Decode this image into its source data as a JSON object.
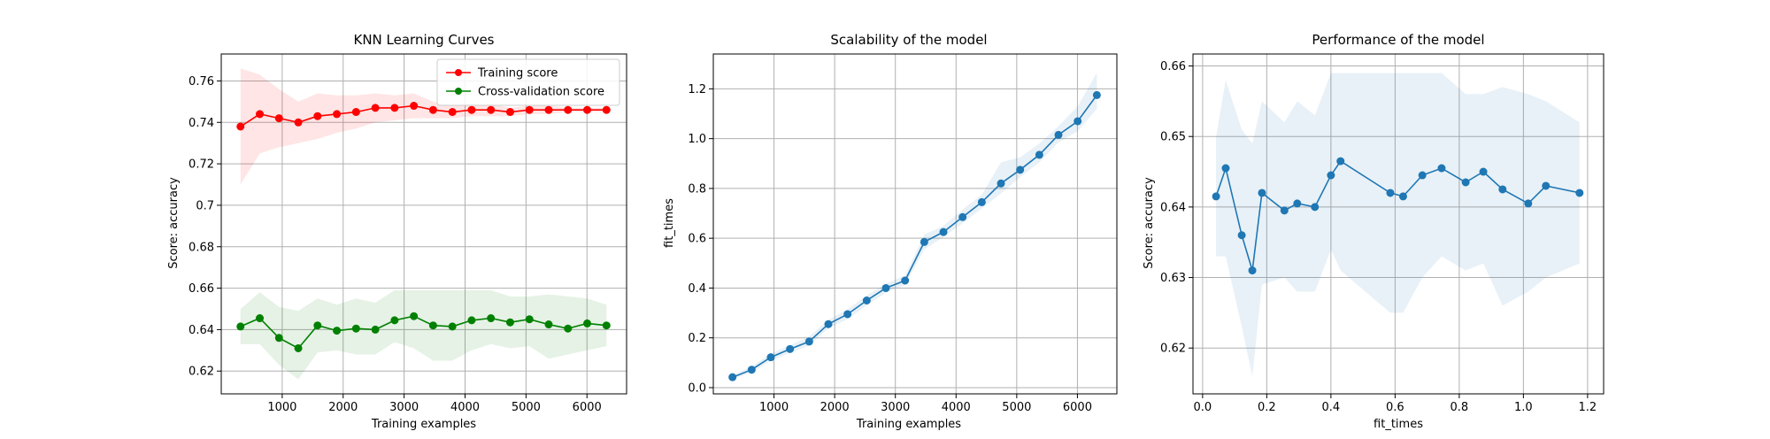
{
  "chart_data": [
    {
      "type": "line",
      "title": "KNN Learning Curves",
      "xlabel": "Training examples",
      "ylabel": "Score: accuracy",
      "xlim": [
        0,
        6650
      ],
      "ylim": [
        0.609,
        0.773
      ],
      "xticks": [
        1000,
        2000,
        3000,
        4000,
        5000,
        6000
      ],
      "yticks": [
        0.62,
        0.64,
        0.66,
        0.68,
        0.7,
        0.72,
        0.74,
        0.76
      ],
      "grid": true,
      "legend": "top-right",
      "x": [
        316,
        632,
        948,
        1264,
        1580,
        1896,
        2212,
        2528,
        2844,
        3160,
        3476,
        3792,
        4108,
        4424,
        4740,
        5056,
        5372,
        5688,
        6004,
        6320
      ],
      "series": [
        {
          "name": "Training score",
          "color": "#ff0000",
          "values": [
            0.738,
            0.744,
            0.742,
            0.74,
            0.743,
            0.744,
            0.745,
            0.747,
            0.747,
            0.748,
            0.746,
            0.745,
            0.746,
            0.746,
            0.745,
            0.746,
            0.746,
            0.746,
            0.746,
            0.746
          ],
          "lower": [
            0.71,
            0.725,
            0.728,
            0.73,
            0.732,
            0.735,
            0.737,
            0.74,
            0.741,
            0.742,
            0.742,
            0.742,
            0.743,
            0.743,
            0.743,
            0.744,
            0.744,
            0.745,
            0.745,
            0.745
          ],
          "upper": [
            0.766,
            0.763,
            0.756,
            0.75,
            0.754,
            0.753,
            0.753,
            0.754,
            0.753,
            0.754,
            0.75,
            0.748,
            0.749,
            0.749,
            0.747,
            0.748,
            0.748,
            0.747,
            0.747,
            0.747
          ]
        },
        {
          "name": "Cross-validation score",
          "color": "#008000",
          "values": [
            0.6415,
            0.6455,
            0.636,
            0.631,
            0.642,
            0.6395,
            0.6405,
            0.64,
            0.6445,
            0.6465,
            0.642,
            0.6415,
            0.6445,
            0.6455,
            0.6435,
            0.645,
            0.6425,
            0.6405,
            0.643,
            0.642
          ],
          "lower": [
            0.633,
            0.633,
            0.623,
            0.616,
            0.629,
            0.63,
            0.628,
            0.628,
            0.634,
            0.631,
            0.625,
            0.625,
            0.63,
            0.633,
            0.631,
            0.632,
            0.626,
            0.628,
            0.63,
            0.632
          ],
          "upper": [
            0.65,
            0.658,
            0.651,
            0.649,
            0.655,
            0.652,
            0.655,
            0.653,
            0.659,
            0.659,
            0.659,
            0.659,
            0.659,
            0.659,
            0.656,
            0.656,
            0.657,
            0.656,
            0.655,
            0.652
          ]
        }
      ]
    },
    {
      "type": "line",
      "title": "Scalability of the model",
      "xlabel": "Training examples",
      "ylabel": "fit_times",
      "xlim": [
        0,
        6650
      ],
      "ylim": [
        -0.025,
        1.34
      ],
      "xticks": [
        1000,
        2000,
        3000,
        4000,
        5000,
        6000
      ],
      "yticks": [
        0.0,
        0.2,
        0.4,
        0.6,
        0.8,
        1.0,
        1.2
      ],
      "ytick_labels": [
        "0.0",
        "0.2",
        "0.4",
        "0.6",
        "0.8",
        "1.0",
        "1.2"
      ],
      "grid": true,
      "x": [
        316,
        632,
        948,
        1264,
        1580,
        1896,
        2212,
        2528,
        2844,
        3160,
        3476,
        3792,
        4108,
        4424,
        4740,
        5056,
        5372,
        5688,
        6004,
        6320
      ],
      "series": [
        {
          "color": "#1f77b4",
          "values": [
            0.042,
            0.072,
            0.122,
            0.155,
            0.185,
            0.255,
            0.295,
            0.35,
            0.4,
            0.43,
            0.585,
            0.625,
            0.685,
            0.745,
            0.82,
            0.875,
            0.935,
            1.015,
            1.07,
            1.175
          ],
          "lower": [
            0.035,
            0.06,
            0.108,
            0.14,
            0.168,
            0.238,
            0.275,
            0.33,
            0.382,
            0.412,
            0.555,
            0.605,
            0.66,
            0.72,
            0.78,
            0.845,
            0.905,
            0.985,
            1.03,
            1.12
          ],
          "upper": [
            0.05,
            0.085,
            0.137,
            0.17,
            0.205,
            0.272,
            0.315,
            0.37,
            0.418,
            0.45,
            0.615,
            0.65,
            0.715,
            0.775,
            0.905,
            0.925,
            0.98,
            1.05,
            1.13,
            1.265
          ]
        }
      ]
    },
    {
      "type": "line",
      "title": "Performance of the model",
      "xlabel": "fit_times",
      "ylabel": "Score: accuracy",
      "xlim": [
        -0.03,
        1.25
      ],
      "ylim": [
        0.6135,
        0.6617
      ],
      "xticks": [
        0.0,
        0.2,
        0.4,
        0.6,
        0.8,
        1.0,
        1.2
      ],
      "xtick_labels": [
        "0.0",
        "0.2",
        "0.4",
        "0.6",
        "0.8",
        "1.0",
        "1.2"
      ],
      "yticks": [
        0.62,
        0.63,
        0.64,
        0.65,
        0.66
      ],
      "grid": true,
      "series": [
        {
          "color": "#1f77b4",
          "x": [
            0.042,
            0.072,
            0.122,
            0.155,
            0.185,
            0.255,
            0.295,
            0.35,
            0.4,
            0.43,
            0.585,
            0.625,
            0.685,
            0.745,
            0.82,
            0.875,
            0.935,
            1.015,
            1.07,
            1.175
          ],
          "values": [
            0.6415,
            0.6455,
            0.636,
            0.631,
            0.642,
            0.6395,
            0.6405,
            0.64,
            0.6445,
            0.6465,
            0.642,
            0.6415,
            0.6445,
            0.6455,
            0.6435,
            0.645,
            0.6425,
            0.6405,
            0.643,
            0.642
          ],
          "lower": [
            0.633,
            0.633,
            0.623,
            0.616,
            0.629,
            0.63,
            0.628,
            0.628,
            0.634,
            0.631,
            0.625,
            0.625,
            0.63,
            0.633,
            0.631,
            0.632,
            0.626,
            0.628,
            0.63,
            0.632
          ],
          "upper": [
            0.65,
            0.658,
            0.651,
            0.649,
            0.655,
            0.652,
            0.655,
            0.653,
            0.659,
            0.659,
            0.659,
            0.659,
            0.659,
            0.659,
            0.656,
            0.656,
            0.657,
            0.656,
            0.655,
            0.652
          ]
        }
      ]
    }
  ]
}
